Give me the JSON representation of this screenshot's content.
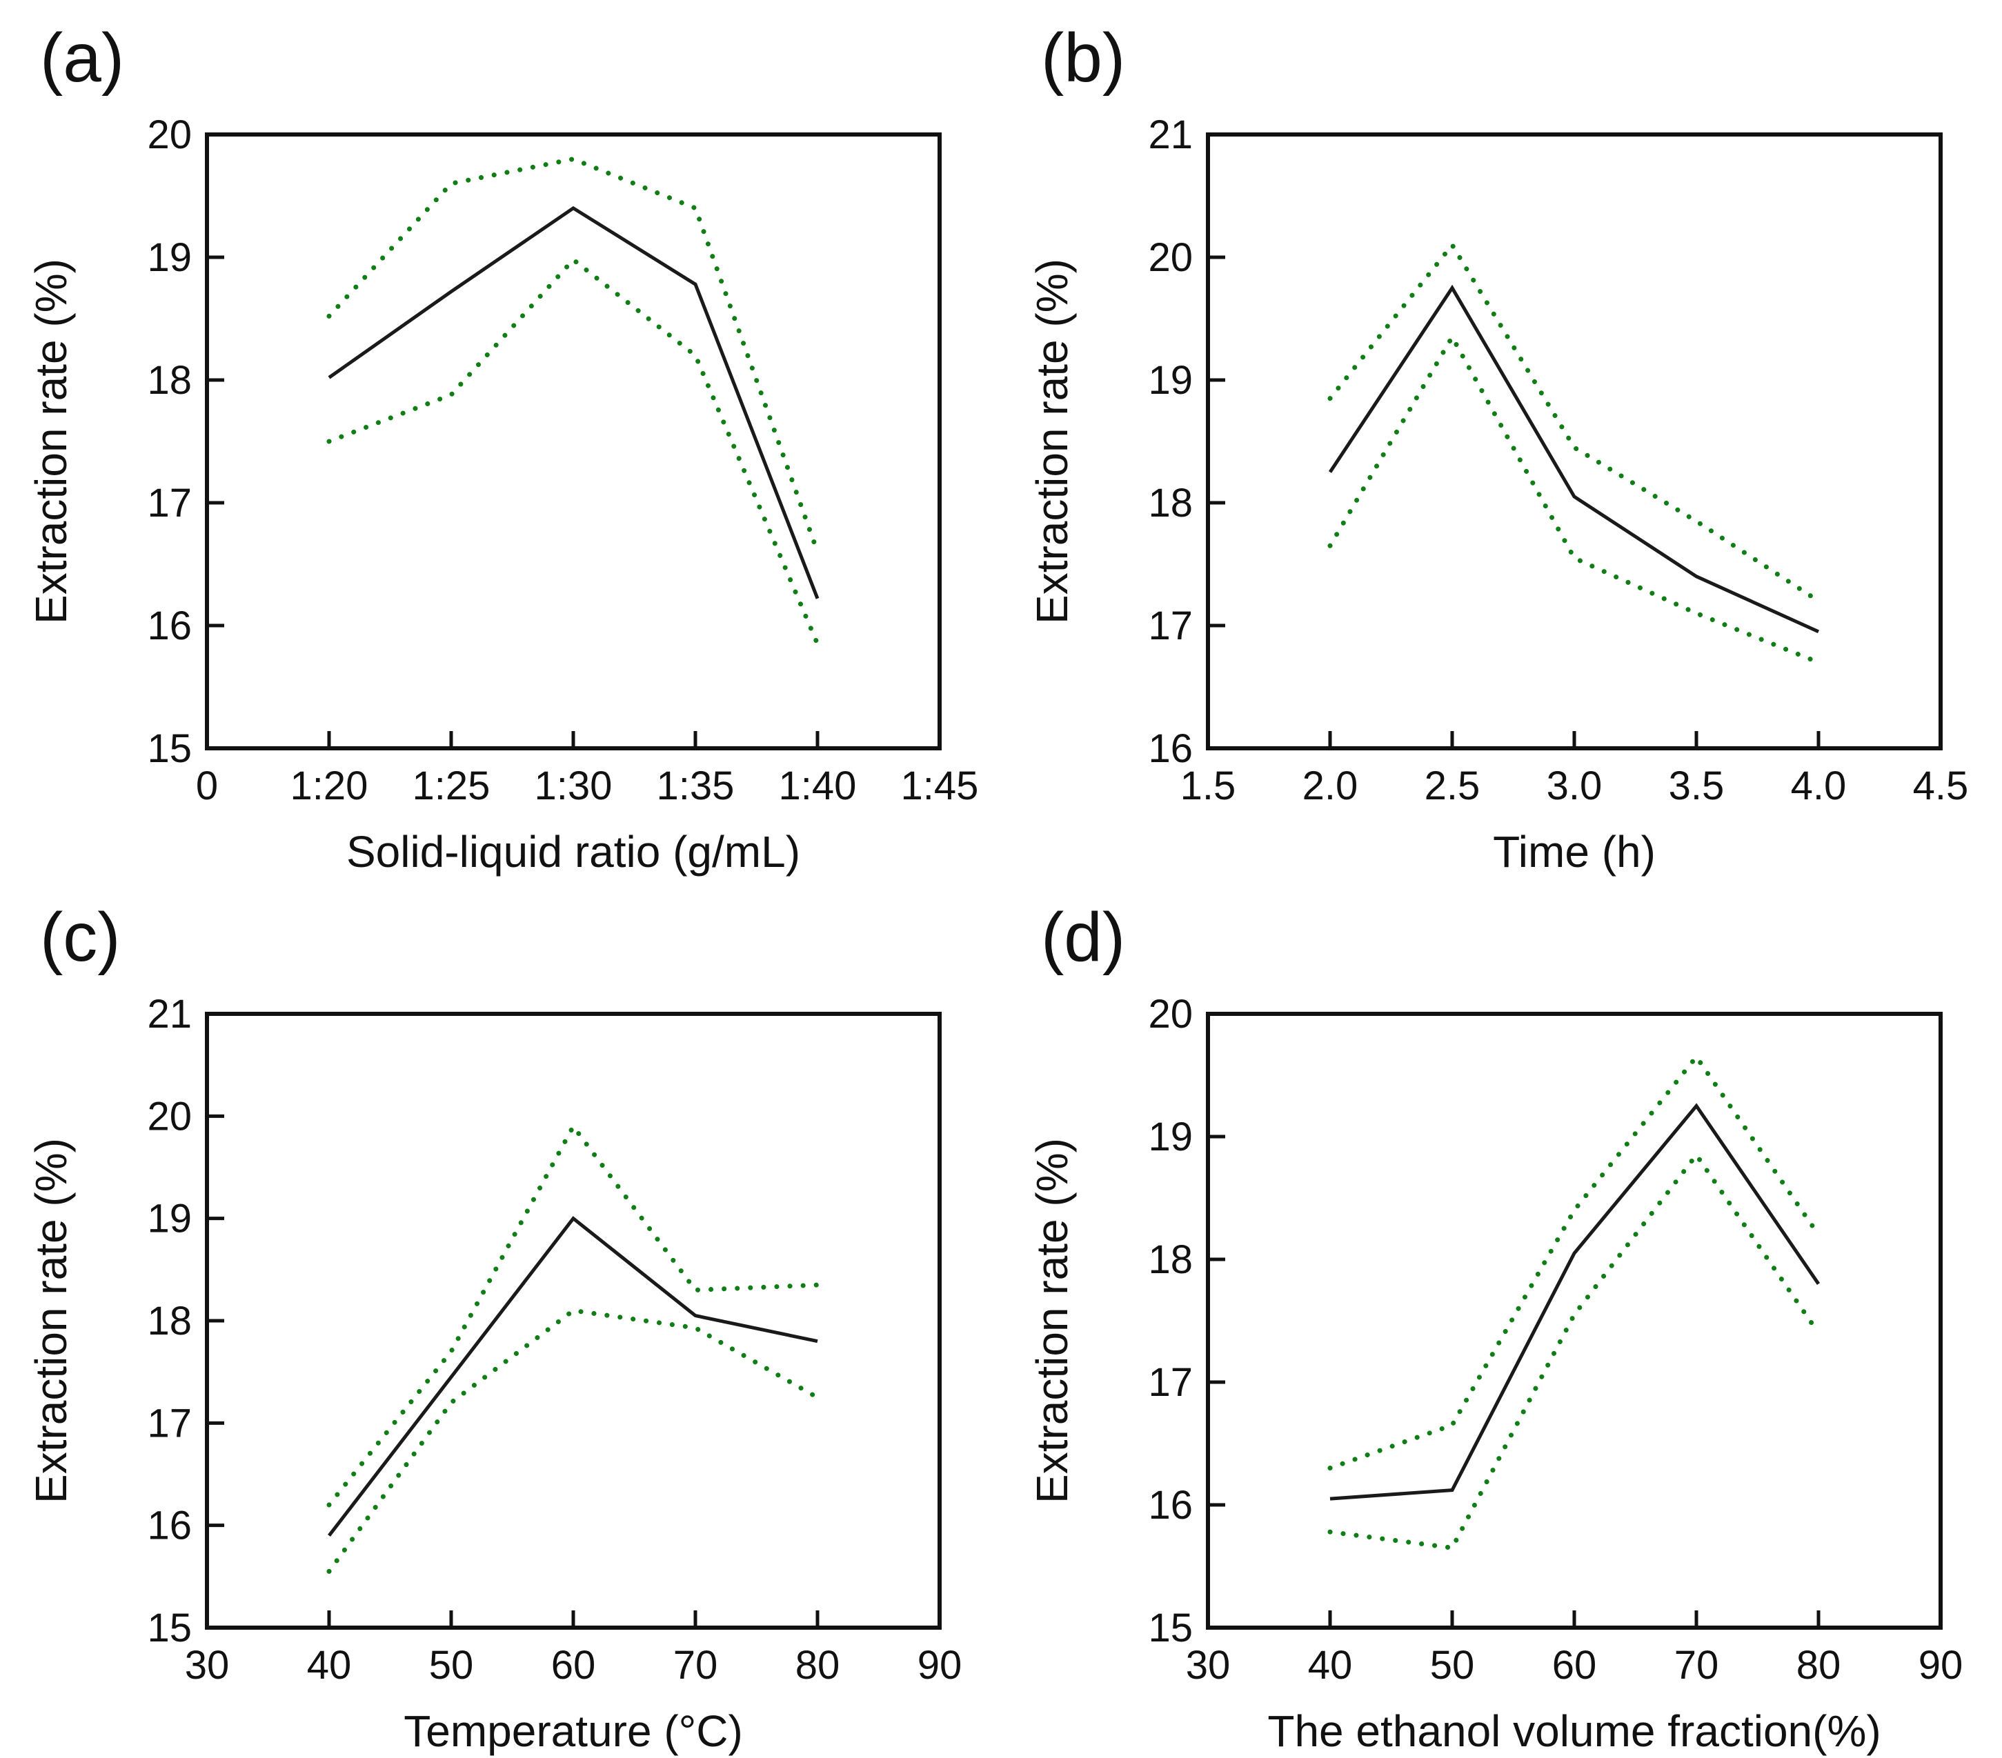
{
  "figure": {
    "background": "#ffffff",
    "axis_color": "#111111",
    "text_color": "#111111",
    "mean_line_color": "#1a1a1a",
    "bound_line_color": "#0f7e14"
  },
  "chart_data": [
    {
      "panel": "(a)",
      "type": "line",
      "title": "",
      "xlabel": "Solid-liquid ratio (g/mL)",
      "ylabel": "Extraction rate (%)",
      "xlim": [
        0,
        6
      ],
      "ylim": [
        15,
        20
      ],
      "xticks": [
        0,
        1,
        2,
        3,
        4,
        5,
        6
      ],
      "x_tick_labels": [
        "0",
        "1:20",
        "1:25",
        "1:30",
        "1:35",
        "1:40",
        "1:45"
      ],
      "yticks": [
        15,
        16,
        17,
        18,
        19,
        20
      ],
      "y_tick_labels": [
        "15",
        "16",
        "17",
        "18",
        "19",
        "20"
      ],
      "x_categories": [
        "1:20",
        "1:25",
        "1:30",
        "1:35",
        "1:40"
      ],
      "x": [
        1,
        2,
        3,
        4,
        5
      ],
      "grid": false,
      "legend": "none",
      "series": [
        {
          "name": "mean",
          "style": "solid",
          "color": "#1a1a1a",
          "values": [
            18.02,
            18.72,
            19.4,
            18.78,
            16.22
          ]
        },
        {
          "name": "upper-bound",
          "style": "dotted",
          "color": "#0f7e14",
          "values": [
            18.52,
            19.6,
            19.8,
            19.4,
            16.6
          ]
        },
        {
          "name": "lower-bound",
          "style": "dotted",
          "color": "#0f7e14",
          "values": [
            17.5,
            17.88,
            18.98,
            18.2,
            15.85
          ]
        }
      ]
    },
    {
      "panel": "(b)",
      "type": "line",
      "title": "",
      "xlabel": "Time (h)",
      "ylabel": "Extraction rate (%)",
      "xlim": [
        1.5,
        4.5
      ],
      "ylim": [
        16,
        21
      ],
      "xticks": [
        1.5,
        2.0,
        2.5,
        3.0,
        3.5,
        4.0,
        4.5
      ],
      "x_tick_labels": [
        "1.5",
        "2.0",
        "2.5",
        "3.0",
        "3.5",
        "4.0",
        "4.5"
      ],
      "yticks": [
        16,
        17,
        18,
        19,
        20,
        21
      ],
      "y_tick_labels": [
        "16",
        "17",
        "18",
        "19",
        "20",
        "21"
      ],
      "x_categories": [
        "2.0",
        "2.5",
        "3.0",
        "3.5",
        "4.0"
      ],
      "x": [
        2.0,
        2.5,
        3.0,
        3.5,
        4.0
      ],
      "grid": false,
      "legend": "none",
      "series": [
        {
          "name": "mean",
          "style": "solid",
          "color": "#1a1a1a",
          "values": [
            18.25,
            19.75,
            18.05,
            17.4,
            16.95
          ]
        },
        {
          "name": "upper-bound",
          "style": "dotted",
          "color": "#0f7e14",
          "values": [
            18.85,
            20.1,
            18.45,
            17.85,
            17.2
          ]
        },
        {
          "name": "lower-bound",
          "style": "dotted",
          "color": "#0f7e14",
          "values": [
            17.65,
            19.35,
            17.55,
            17.1,
            16.7
          ]
        }
      ]
    },
    {
      "panel": "(c)",
      "type": "line",
      "title": "",
      "xlabel": "Temperature (°C)",
      "ylabel": "Extraction rate (%)",
      "xlim": [
        30,
        90
      ],
      "ylim": [
        15,
        21
      ],
      "xticks": [
        30,
        40,
        50,
        60,
        70,
        80,
        90
      ],
      "x_tick_labels": [
        "30",
        "40",
        "50",
        "60",
        "70",
        "80",
        "90"
      ],
      "yticks": [
        15,
        16,
        17,
        18,
        19,
        20,
        21
      ],
      "y_tick_labels": [
        "15",
        "16",
        "17",
        "18",
        "19",
        "20",
        "21"
      ],
      "x_categories": [
        "40",
        "50",
        "60",
        "70",
        "80"
      ],
      "x": [
        40,
        50,
        60,
        70,
        80
      ],
      "grid": false,
      "legend": "none",
      "series": [
        {
          "name": "mean",
          "style": "solid",
          "color": "#1a1a1a",
          "values": [
            15.9,
            17.45,
            19.0,
            18.05,
            17.8
          ]
        },
        {
          "name": "upper-bound",
          "style": "dotted",
          "color": "#0f7e14",
          "values": [
            16.2,
            17.7,
            19.9,
            18.3,
            18.35
          ]
        },
        {
          "name": "lower-bound",
          "style": "dotted",
          "color": "#0f7e14",
          "values": [
            15.55,
            17.2,
            18.1,
            17.93,
            17.25
          ]
        }
      ]
    },
    {
      "panel": "(d)",
      "type": "line",
      "title": "",
      "xlabel": "The ethanol volume fraction(%)",
      "ylabel": "Extraction rate (%)",
      "xlim": [
        30,
        90
      ],
      "ylim": [
        15,
        20
      ],
      "xticks": [
        30,
        40,
        50,
        60,
        70,
        80,
        90
      ],
      "x_tick_labels": [
        "30",
        "40",
        "50",
        "60",
        "70",
        "80",
        "90"
      ],
      "yticks": [
        15,
        16,
        17,
        18,
        19,
        20
      ],
      "y_tick_labels": [
        "15",
        "16",
        "17",
        "18",
        "19",
        "20"
      ],
      "x_categories": [
        "40",
        "50",
        "60",
        "70",
        "80"
      ],
      "x": [
        40,
        50,
        60,
        70,
        80
      ],
      "grid": false,
      "legend": "none",
      "series": [
        {
          "name": "mean",
          "style": "solid",
          "color": "#1a1a1a",
          "values": [
            16.05,
            16.12,
            18.05,
            19.25,
            17.8
          ]
        },
        {
          "name": "upper-bound",
          "style": "dotted",
          "color": "#0f7e14",
          "values": [
            16.3,
            16.65,
            18.4,
            19.65,
            18.2
          ]
        },
        {
          "name": "lower-bound",
          "style": "dotted",
          "color": "#0f7e14",
          "values": [
            15.78,
            15.65,
            17.55,
            18.85,
            17.4
          ]
        }
      ]
    }
  ]
}
